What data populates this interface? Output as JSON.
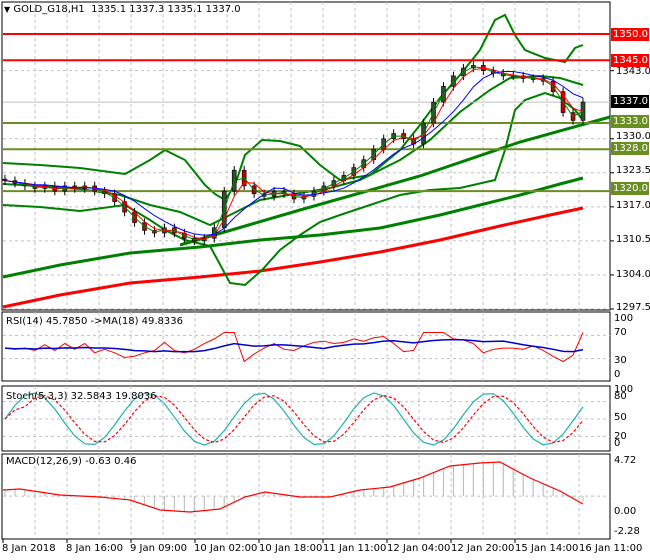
{
  "header": {
    "symbol_title": "GOLD_G18,H1",
    "ohlc": "1335.1 1337.3 1335.1 1337.0"
  },
  "colors": {
    "resistance": "#ff0000",
    "support": "#6b8e23",
    "current_price_bg": "#000000",
    "ma_long_green": "#008000",
    "ma_long_red": "#ff0000",
    "bollinger": "#008000",
    "ma_fast_red": "#ff0000",
    "ma_fast_blue": "#0000ff",
    "ma_fast_green": "#008000",
    "bull_candle": "#000000",
    "bear_candle": "#c00000",
    "rsi_line": "#ff0000",
    "rsi_ma": "#0000cd",
    "stoch_main": "#20b2aa",
    "stoch_signal": "#ff0000",
    "macd_hist": "#c0c0c0",
    "macd_signal": "#ff0000"
  },
  "main_axis": {
    "ticks": [
      "1343.0",
      "1330.0",
      "1323.5",
      "1317.0",
      "1310.5",
      "1304.0",
      "1297.5"
    ]
  },
  "price_tags": {
    "r1": "1350.0",
    "r2": "1345.0",
    "current": "1337.0",
    "s1": "1333.0",
    "s2": "1328.0",
    "s3": "1320.0"
  },
  "rsi": {
    "label": "RSI(14) 45.7850 ->MA(18) 49.8336",
    "ticks": [
      "100",
      "70",
      "30",
      "0"
    ]
  },
  "stoch": {
    "label": "Stoch(5,3,3) 32.5843 19.8036",
    "ticks": [
      "100",
      "80",
      "50",
      "20",
      "0"
    ]
  },
  "macd": {
    "label": "MACD(12,26,9) -0.63 0.46",
    "ticks": [
      "4.72",
      "0.00",
      "-2.28"
    ]
  },
  "x_axis": {
    "labels": [
      "8 Jan 2018",
      "8 Jan 16:00",
      "9 Jan 09:00",
      "10 Jan 02:00",
      "10 Jan 18:00",
      "11 Jan 11:00",
      "12 Jan 04:00",
      "12 Jan 20:00",
      "15 Jan 14:00",
      "16 Jan 11:00"
    ]
  },
  "chart_data": [
    {
      "type": "candlestick",
      "title": "GOLD_G18,H1",
      "ohlc_last": {
        "open": 1335.1,
        "high": 1337.3,
        "low": 1335.1,
        "close": 1337.0
      },
      "ylim": [
        1297.5,
        1352
      ],
      "y_ticks": [
        1297.5,
        1304.0,
        1310.5,
        1317.0,
        1323.5,
        1330.0,
        1343.0
      ],
      "x_tick_labels": [
        "8 Jan 2018",
        "8 Jan 16:00",
        "9 Jan 09:00",
        "10 Jan 02:00",
        "10 Jan 18:00",
        "11 Jan 11:00",
        "12 Jan 04:00",
        "12 Jan 20:00",
        "15 Jan 14:00",
        "16 Jan 11:00"
      ],
      "horizontal_levels": [
        {
          "value": 1350.0,
          "color": "red",
          "role": "resistance"
        },
        {
          "value": 1345.0,
          "color": "red",
          "role": "resistance"
        },
        {
          "value": 1333.0,
          "color": "olive",
          "role": "support"
        },
        {
          "value": 1328.0,
          "color": "olive",
          "role": "support"
        },
        {
          "value": 1320.0,
          "color": "olive",
          "role": "support"
        }
      ],
      "current_price": 1337.0,
      "approx_close_path": [
        1322,
        1321.5,
        1321,
        1320.5,
        1321,
        1320,
        1321,
        1320.5,
        1321,
        1320,
        1319.5,
        1318,
        1316,
        1314,
        1312.5,
        1312,
        1313,
        1312,
        1311,
        1310.5,
        1311,
        1313,
        1320,
        1324,
        1321,
        1319.5,
        1319,
        1320,
        1319.5,
        1318.5,
        1319,
        1320,
        1321,
        1322,
        1323,
        1324.5,
        1326,
        1328,
        1330,
        1331,
        1330,
        1329,
        1333,
        1337,
        1340,
        1342,
        1343.5,
        1344,
        1343,
        1342.5,
        1342,
        1342,
        1341.5,
        1341.5,
        1341,
        1339,
        1335,
        1333.5,
        1337
      ],
      "overlays": [
        "Bollinger Bands",
        "fast MA red",
        "fast MA blue",
        "fast MA green",
        "long MA green",
        "long MA red",
        "trendline"
      ]
    },
    {
      "type": "line",
      "title": "RSI(14) 45.7850 ->MA(18) 49.8336",
      "ylim": [
        0,
        100
      ],
      "y_ticks": [
        0,
        30,
        70,
        100
      ],
      "series": [
        {
          "name": "RSI(14)",
          "last": 45.785
        },
        {
          "name": "MA(18)",
          "last": 49.8336
        }
      ]
    },
    {
      "type": "line",
      "title": "Stoch(5,3,3) 32.5843 19.8036",
      "ylim": [
        0,
        100
      ],
      "y_ticks": [
        0,
        20,
        50,
        80,
        100
      ],
      "series": [
        {
          "name": "%K",
          "last": 32.5843
        },
        {
          "name": "%D",
          "last": 19.8036
        }
      ]
    },
    {
      "type": "bar",
      "title": "MACD(12,26,9) -0.63 0.46",
      "ylim": [
        -2.28,
        4.72
      ],
      "y_ticks": [
        -2.28,
        0.0,
        4.72
      ],
      "series": [
        {
          "name": "MACD histogram",
          "last": -0.63
        },
        {
          "name": "Signal",
          "last": 0.46
        }
      ]
    }
  ]
}
